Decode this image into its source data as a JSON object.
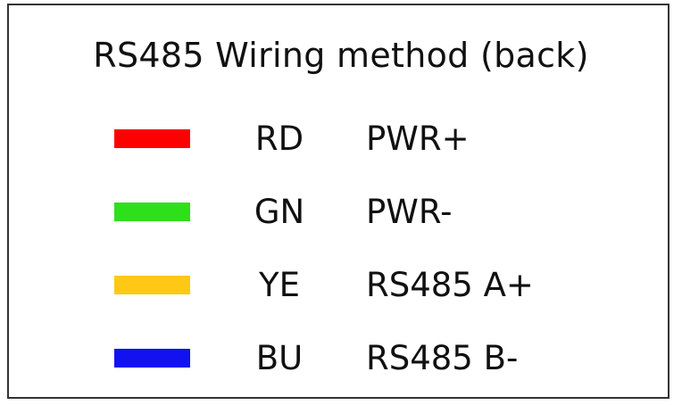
{
  "title": "RS485 Wiring method (back)",
  "wires": [
    {
      "code": "RD",
      "function": "PWR+",
      "color": "#ff0000"
    },
    {
      "code": "GN",
      "function": "PWR-",
      "color": "#2ee01a"
    },
    {
      "code": "YE",
      "function": "RS485 A+",
      "color": "#ffc814"
    },
    {
      "code": "BU",
      "function": "RS485 B-",
      "color": "#1212f0"
    }
  ]
}
